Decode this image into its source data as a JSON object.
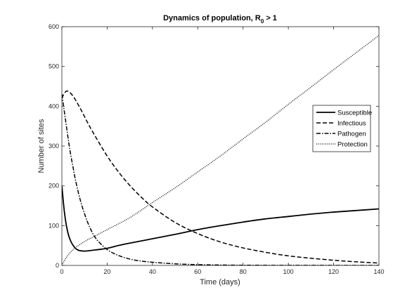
{
  "chart_data": {
    "type": "line",
    "title": {
      "main": "Dynamics of population, R",
      "sub": "0",
      "suffix": " > 1"
    },
    "xlabel": "Time (days)",
    "ylabel": "Number of sites",
    "xlim": [
      0,
      140
    ],
    "ylim": [
      0,
      600
    ],
    "xticks": [
      0,
      20,
      40,
      60,
      80,
      100,
      120,
      140
    ],
    "yticks": [
      0,
      100,
      200,
      300,
      400,
      500,
      600
    ],
    "grid": false,
    "legend_position": "right",
    "series": [
      {
        "name": "Susceptible",
        "style": "solid",
        "x": [
          0,
          1,
          2,
          3,
          4,
          5,
          6,
          7,
          8,
          10,
          12,
          15,
          20,
          25,
          30,
          40,
          50,
          60,
          70,
          80,
          90,
          100,
          110,
          120,
          130,
          140
        ],
        "y": [
          200,
          140,
          100,
          75,
          60,
          50,
          43,
          39,
          37,
          36,
          37,
          39,
          43,
          50,
          56,
          67,
          78,
          90,
          100,
          109,
          117,
          123,
          129,
          134,
          138,
          142
        ]
      },
      {
        "name": "Infectious",
        "style": "dashed",
        "x": [
          0,
          1,
          2,
          3,
          4,
          5,
          6,
          8,
          10,
          12,
          15,
          20,
          25,
          30,
          35,
          40,
          50,
          60,
          70,
          80,
          90,
          100,
          110,
          120,
          130,
          140
        ],
        "y": [
          420,
          432,
          438,
          437,
          432,
          425,
          416,
          396,
          374,
          352,
          322,
          275,
          235,
          201,
          172,
          147,
          108,
          80,
          59,
          44,
          33,
          24,
          18,
          13,
          9,
          6
        ]
      },
      {
        "name": "Pathogen",
        "style": "dashdot",
        "x": [
          0,
          1,
          2,
          3,
          4,
          5,
          6,
          8,
          10,
          12,
          15,
          20,
          25,
          30,
          35,
          40,
          50,
          60,
          70,
          80,
          100,
          120,
          140
        ],
        "y": [
          430,
          390,
          350,
          310,
          275,
          245,
          215,
          167,
          130,
          100,
          68,
          40,
          25,
          16,
          11,
          8,
          4,
          2,
          1,
          0.5,
          0.2,
          0.1,
          0
        ]
      },
      {
        "name": "Protection",
        "style": "dotted",
        "x": [
          0,
          2,
          5,
          10,
          15,
          20,
          30,
          40,
          50,
          60,
          70,
          80,
          90,
          100,
          110,
          120,
          130,
          140
        ],
        "y": [
          0,
          20,
          40,
          60,
          75,
          90,
          120,
          158,
          195,
          235,
          275,
          318,
          360,
          405,
          448,
          492,
          535,
          578
        ]
      }
    ]
  }
}
